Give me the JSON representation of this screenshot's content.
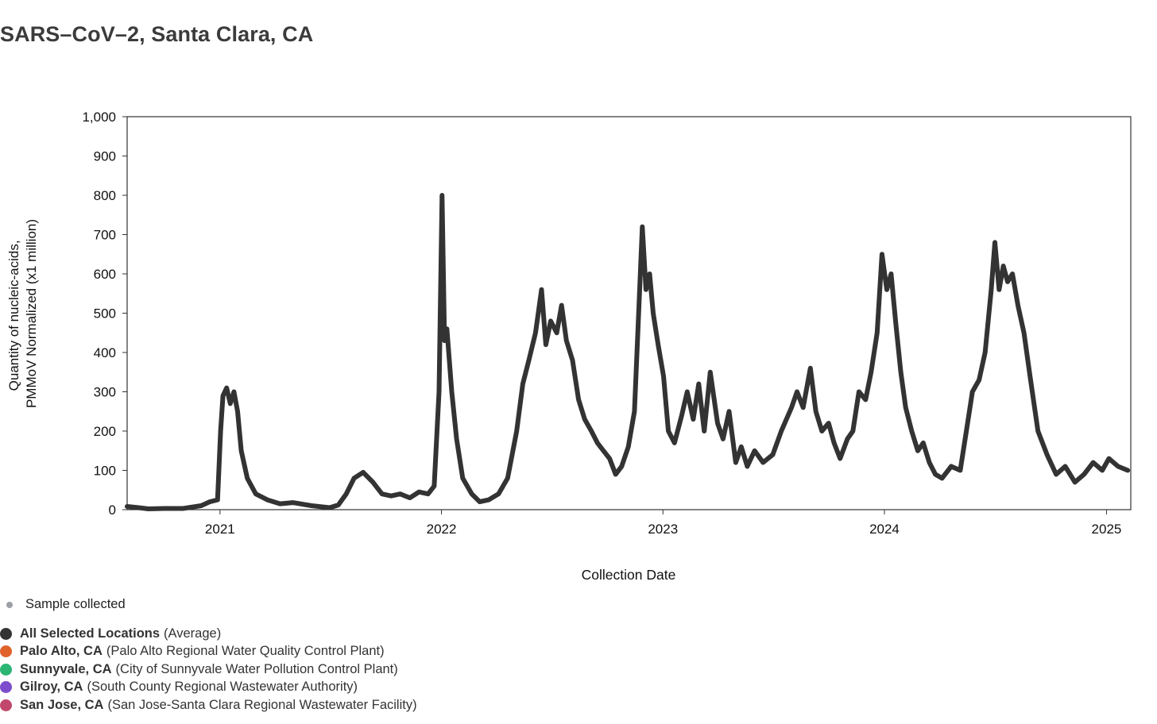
{
  "title": "SARS–CoV–2, Santa Clara, CA",
  "chart_data": {
    "type": "line",
    "title": "SARS–CoV–2, Santa Clara, CA",
    "xlabel": "Collection Date",
    "ylabel_lines": [
      "Quantity of nucleic-acids,",
      "PMMoV Normalized (x1 million)"
    ],
    "ylim": [
      0,
      1000
    ],
    "yticks": [
      0,
      100,
      200,
      300,
      400,
      500,
      600,
      700,
      800,
      900,
      1000
    ],
    "ytick_labels": [
      "0",
      "100",
      "200",
      "300",
      "400",
      "500",
      "600",
      "700",
      "800",
      "900",
      "1,000"
    ],
    "xlim": [
      "2020-08-01",
      "2025-02-10"
    ],
    "xticks": [
      "2021-01-01",
      "2022-01-01",
      "2023-01-01",
      "2024-01-01",
      "2025-01-01"
    ],
    "xtick_labels": [
      "2021",
      "2022",
      "2023",
      "2024",
      "2025"
    ],
    "grid": false,
    "series": [
      {
        "name": "All Selected Locations",
        "color": "#333333",
        "points": [
          [
            "2020-08-01",
            8
          ],
          [
            "2020-08-20",
            5
          ],
          [
            "2020-09-05",
            2
          ],
          [
            "2020-10-01",
            3
          ],
          [
            "2020-11-01",
            3
          ],
          [
            "2020-12-01",
            10
          ],
          [
            "2020-12-15",
            20
          ],
          [
            "2020-12-28",
            25
          ],
          [
            "2021-01-02",
            200
          ],
          [
            "2021-01-06",
            290
          ],
          [
            "2021-01-12",
            310
          ],
          [
            "2021-01-18",
            270
          ],
          [
            "2021-01-24",
            300
          ],
          [
            "2021-01-30",
            250
          ],
          [
            "2021-02-05",
            150
          ],
          [
            "2021-02-15",
            80
          ],
          [
            "2021-03-01",
            40
          ],
          [
            "2021-03-20",
            25
          ],
          [
            "2021-04-10",
            15
          ],
          [
            "2021-05-01",
            18
          ],
          [
            "2021-06-01",
            10
          ],
          [
            "2021-07-01",
            5
          ],
          [
            "2021-07-15",
            12
          ],
          [
            "2021-07-28",
            40
          ],
          [
            "2021-08-10",
            80
          ],
          [
            "2021-08-25",
            95
          ],
          [
            "2021-09-10",
            70
          ],
          [
            "2021-09-25",
            40
          ],
          [
            "2021-10-10",
            35
          ],
          [
            "2021-10-25",
            40
          ],
          [
            "2021-11-10",
            30
          ],
          [
            "2021-11-25",
            45
          ],
          [
            "2021-12-10",
            40
          ],
          [
            "2021-12-20",
            60
          ],
          [
            "2021-12-28",
            300
          ],
          [
            "2022-01-02",
            800
          ],
          [
            "2022-01-06",
            430
          ],
          [
            "2022-01-10",
            460
          ],
          [
            "2022-01-18",
            300
          ],
          [
            "2022-01-26",
            180
          ],
          [
            "2022-02-05",
            80
          ],
          [
            "2022-02-20",
            40
          ],
          [
            "2022-03-05",
            20
          ],
          [
            "2022-03-20",
            25
          ],
          [
            "2022-04-05",
            40
          ],
          [
            "2022-04-20",
            80
          ],
          [
            "2022-05-05",
            200
          ],
          [
            "2022-05-15",
            320
          ],
          [
            "2022-05-25",
            380
          ],
          [
            "2022-06-05",
            450
          ],
          [
            "2022-06-15",
            560
          ],
          [
            "2022-06-22",
            420
          ],
          [
            "2022-06-30",
            480
          ],
          [
            "2022-07-10",
            450
          ],
          [
            "2022-07-18",
            520
          ],
          [
            "2022-07-26",
            430
          ],
          [
            "2022-08-05",
            380
          ],
          [
            "2022-08-15",
            280
          ],
          [
            "2022-08-25",
            230
          ],
          [
            "2022-09-05",
            200
          ],
          [
            "2022-09-15",
            170
          ],
          [
            "2022-09-25",
            150
          ],
          [
            "2022-10-05",
            130
          ],
          [
            "2022-10-15",
            90
          ],
          [
            "2022-10-25",
            110
          ],
          [
            "2022-11-05",
            160
          ],
          [
            "2022-11-15",
            250
          ],
          [
            "2022-11-22",
            500
          ],
          [
            "2022-11-28",
            720
          ],
          [
            "2022-12-04",
            560
          ],
          [
            "2022-12-10",
            600
          ],
          [
            "2022-12-16",
            500
          ],
          [
            "2022-12-24",
            420
          ],
          [
            "2023-01-02",
            340
          ],
          [
            "2023-01-10",
            200
          ],
          [
            "2023-01-20",
            170
          ],
          [
            "2023-02-01",
            240
          ],
          [
            "2023-02-10",
            300
          ],
          [
            "2023-02-20",
            230
          ],
          [
            "2023-03-01",
            320
          ],
          [
            "2023-03-10",
            200
          ],
          [
            "2023-03-20",
            350
          ],
          [
            "2023-04-01",
            220
          ],
          [
            "2023-04-10",
            180
          ],
          [
            "2023-04-20",
            250
          ],
          [
            "2023-05-01",
            120
          ],
          [
            "2023-05-10",
            160
          ],
          [
            "2023-05-20",
            110
          ],
          [
            "2023-06-01",
            150
          ],
          [
            "2023-06-15",
            120
          ],
          [
            "2023-07-01",
            140
          ],
          [
            "2023-07-15",
            200
          ],
          [
            "2023-08-01",
            260
          ],
          [
            "2023-08-10",
            300
          ],
          [
            "2023-08-20",
            260
          ],
          [
            "2023-09-01",
            360
          ],
          [
            "2023-09-10",
            250
          ],
          [
            "2023-09-20",
            200
          ],
          [
            "2023-10-01",
            220
          ],
          [
            "2023-10-10",
            170
          ],
          [
            "2023-10-20",
            130
          ],
          [
            "2023-11-01",
            180
          ],
          [
            "2023-11-10",
            200
          ],
          [
            "2023-11-20",
            300
          ],
          [
            "2023-12-01",
            280
          ],
          [
            "2023-12-10",
            350
          ],
          [
            "2023-12-20",
            450
          ],
          [
            "2023-12-28",
            650
          ],
          [
            "2024-01-05",
            560
          ],
          [
            "2024-01-12",
            600
          ],
          [
            "2024-01-20",
            470
          ],
          [
            "2024-01-28",
            350
          ],
          [
            "2024-02-05",
            260
          ],
          [
            "2024-02-15",
            200
          ],
          [
            "2024-02-25",
            150
          ],
          [
            "2024-03-05",
            170
          ],
          [
            "2024-03-15",
            120
          ],
          [
            "2024-03-25",
            90
          ],
          [
            "2024-04-05",
            80
          ],
          [
            "2024-04-20",
            110
          ],
          [
            "2024-05-05",
            100
          ],
          [
            "2024-05-15",
            200
          ],
          [
            "2024-05-25",
            300
          ],
          [
            "2024-06-05",
            330
          ],
          [
            "2024-06-15",
            400
          ],
          [
            "2024-06-25",
            560
          ],
          [
            "2024-07-01",
            680
          ],
          [
            "2024-07-08",
            560
          ],
          [
            "2024-07-15",
            620
          ],
          [
            "2024-07-22",
            580
          ],
          [
            "2024-07-30",
            600
          ],
          [
            "2024-08-08",
            520
          ],
          [
            "2024-08-18",
            450
          ],
          [
            "2024-08-28",
            340
          ],
          [
            "2024-09-10",
            200
          ],
          [
            "2024-09-25",
            140
          ],
          [
            "2024-10-10",
            90
          ],
          [
            "2024-10-25",
            110
          ],
          [
            "2024-11-10",
            70
          ],
          [
            "2024-11-25",
            90
          ],
          [
            "2024-12-10",
            120
          ],
          [
            "2024-12-25",
            100
          ],
          [
            "2025-01-05",
            130
          ],
          [
            "2025-01-20",
            110
          ],
          [
            "2025-02-05",
            100
          ]
        ]
      }
    ]
  },
  "legend": {
    "sample_label": "Sample collected",
    "sample_color": "#9aa0a6",
    "items": [
      {
        "name": "All Selected Locations",
        "desc": "(Average)",
        "color": "#333333"
      },
      {
        "name": "Palo Alto, CA",
        "desc": "(Palo Alto Regional Water Quality Control Plant)",
        "color": "#e0622b"
      },
      {
        "name": "Sunnyvale, CA",
        "desc": "(City of Sunnyvale Water Pollution Control Plant)",
        "color": "#2bb673"
      },
      {
        "name": "Gilroy, CA",
        "desc": "(South County Regional Wastewater Authority)",
        "color": "#7c4dcc"
      },
      {
        "name": "San Jose, CA",
        "desc": "(San Jose-Santa Clara Regional Wastewater Facility)",
        "color": "#c2476c"
      }
    ]
  }
}
